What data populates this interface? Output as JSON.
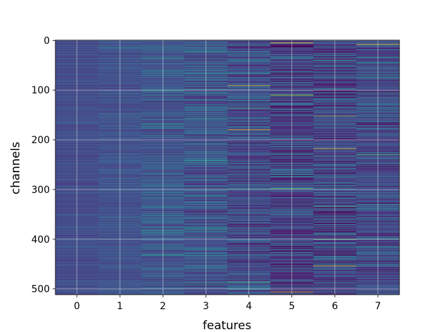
{
  "chart_data": {
    "type": "heatmap",
    "title": "",
    "xlabel": "features",
    "ylabel": "channels",
    "x_categories": [
      "0",
      "1",
      "2",
      "3",
      "4",
      "5",
      "6",
      "7"
    ],
    "y_ticks": [
      0,
      100,
      200,
      300,
      400,
      500
    ],
    "y_range": [
      0,
      511
    ],
    "y_inverted": true,
    "colormap": "viridis",
    "grid": true,
    "n_rows": 512,
    "columns": [
      {
        "feature": "0",
        "base_level": 0.22,
        "spread": 0.05,
        "highlights": []
      },
      {
        "feature": "1",
        "base_level": 0.24,
        "spread": 0.07,
        "highlights": [
          {
            "channel": 15,
            "value": 0.45
          }
        ]
      },
      {
        "feature": "2",
        "base_level": 0.26,
        "spread": 0.12,
        "highlights": [
          {
            "channel": 36,
            "value": 0.55
          },
          {
            "channel": 168,
            "value": 0.55
          },
          {
            "channel": 383,
            "value": 0.55
          },
          {
            "channel": 432,
            "value": 0.55
          }
        ]
      },
      {
        "feature": "3",
        "base_level": 0.25,
        "spread": 0.16,
        "highlights": [
          {
            "channel": 99,
            "value": 0.6
          },
          {
            "channel": 157,
            "value": 0.55
          },
          {
            "channel": 242,
            "value": 0.55
          },
          {
            "channel": 381,
            "value": 0.6
          },
          {
            "channel": 488,
            "value": 0.6
          }
        ]
      },
      {
        "feature": "4",
        "base_level": 0.22,
        "spread": 0.18,
        "highlights": [
          {
            "channel": 91,
            "value": 0.95
          },
          {
            "channel": 137,
            "value": 0.7
          },
          {
            "channel": 180,
            "value": 1.0
          },
          {
            "channel": 298,
            "value": 0.55
          },
          {
            "channel": 486,
            "value": 0.7
          }
        ]
      },
      {
        "feature": "5",
        "base_level": 0.18,
        "spread": 0.2,
        "highlights": [
          {
            "channel": 5,
            "value": 1.0
          },
          {
            "channel": 110,
            "value": 0.9
          },
          {
            "channel": 270,
            "value": 0.6
          },
          {
            "channel": 298,
            "value": 0.75
          },
          {
            "channel": 506,
            "value": 0.95
          }
        ]
      },
      {
        "feature": "6",
        "base_level": 0.2,
        "spread": 0.2,
        "highlights": [
          {
            "channel": 40,
            "value": 0.6
          },
          {
            "channel": 152,
            "value": 0.8
          },
          {
            "channel": 218,
            "value": 0.95
          },
          {
            "channel": 334,
            "value": 0.7
          },
          {
            "channel": 400,
            "value": 0.85
          },
          {
            "channel": 454,
            "value": 0.95
          }
        ]
      },
      {
        "feature": "7",
        "base_level": 0.22,
        "spread": 0.17,
        "highlights": [
          {
            "channel": 8,
            "value": 1.0
          },
          {
            "channel": 70,
            "value": 0.55
          },
          {
            "channel": 105,
            "value": 0.6
          },
          {
            "channel": 230,
            "value": 0.7
          },
          {
            "channel": 330,
            "value": 0.6
          },
          {
            "channel": 400,
            "value": 0.6
          }
        ]
      }
    ]
  }
}
